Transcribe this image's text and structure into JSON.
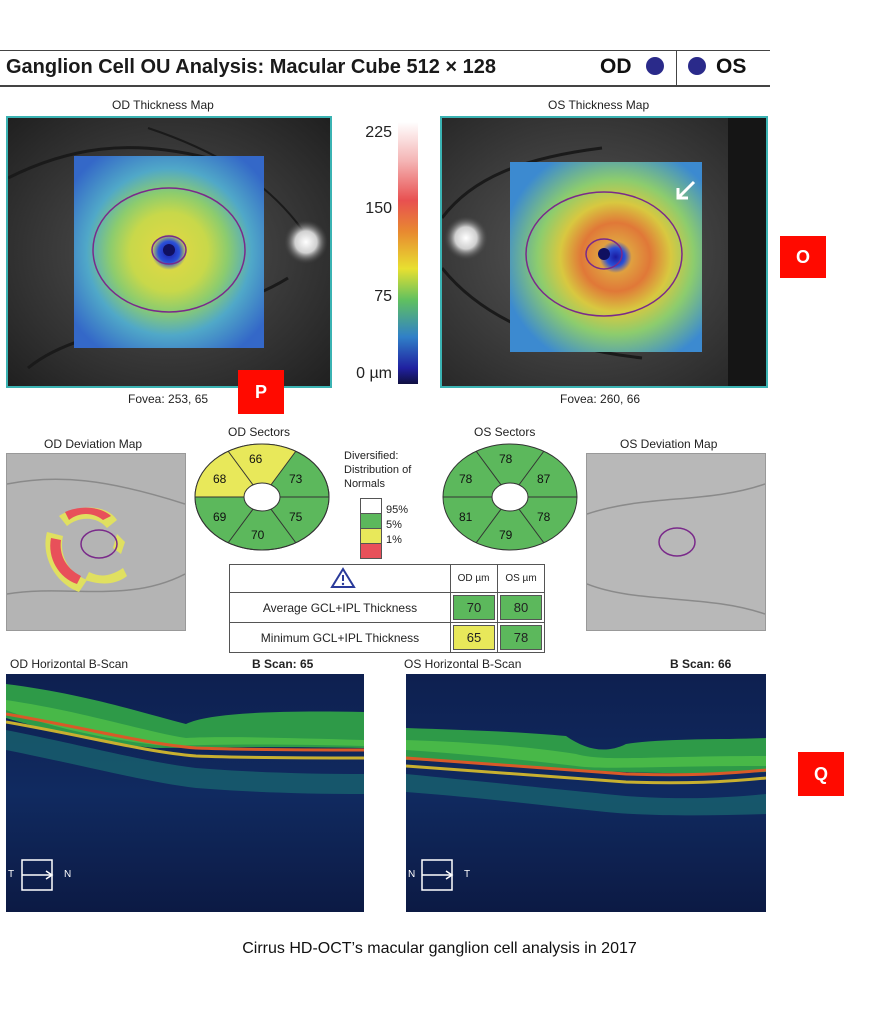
{
  "header": {
    "title": "Ganglion Cell OU Analysis: Macular Cube 512 × 128",
    "od_label": "OD",
    "os_label": "OS"
  },
  "thickness": {
    "od_title": "OD Thickness Map",
    "os_title": "OS Thickness Map",
    "scale_labels": [
      "225",
      "150",
      "75",
      "0 µm"
    ],
    "od_fovea": "Fovea: 253, 65",
    "os_fovea": "Fovea: 260, 66"
  },
  "tags": {
    "o": "O",
    "p": "P",
    "q": "Q"
  },
  "sectors": {
    "od_title": "OD Sectors",
    "os_title": "OS Sectors",
    "od_values": [
      "66",
      "73",
      "75",
      "70",
      "69",
      "68"
    ],
    "os_values": [
      "78",
      "87",
      "78",
      "79",
      "81",
      "78"
    ]
  },
  "legend": {
    "title": "Diversified: Distribution of Normals",
    "p95": "95%",
    "p5": "5%",
    "p1": "1%"
  },
  "deviation": {
    "od_title": "OD Deviation Map",
    "os_title": "OS Deviation Map"
  },
  "table": {
    "col_od": "OD µm",
    "col_os": "OS µm",
    "rows": [
      {
        "label": "Average GCL+IPL Thickness",
        "od": "70",
        "os": "80"
      },
      {
        "label": "Minimum GCL+IPL Thickness",
        "od": "65",
        "os": "78"
      }
    ]
  },
  "bscan": {
    "od_title": "OD Horizontal B-Scan",
    "od_scan": "B Scan:  65",
    "os_title": "OS Horizontal B-Scan",
    "os_scan": "B Scan:  66",
    "od_left": "T",
    "od_right": "N",
    "os_left": "N",
    "os_right": "T"
  },
  "caption": "Cirrus HD-OCT’s macular ganglion cell analysis in 2017",
  "colors": {
    "normal_green": "#5cb85c",
    "borderline_yellow": "#e8e85a",
    "abnormal_red": "#e8505a",
    "frame_teal": "#3bb3b3",
    "tag_red": "#ff0a00"
  }
}
